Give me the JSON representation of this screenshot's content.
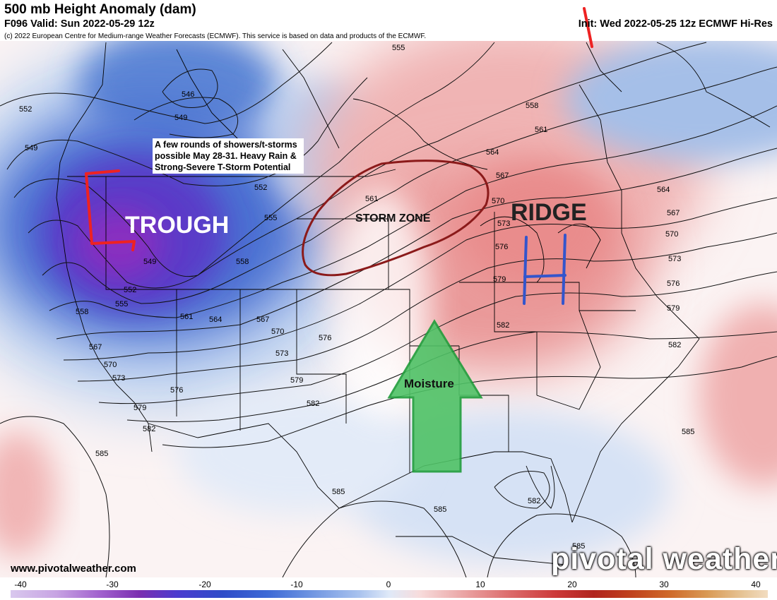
{
  "header": {
    "title": "500 mb Height Anomaly (dam)",
    "subtitle": "F096 Valid: Sun 2022-05-29 12z",
    "init": "Init: Wed 2022-05-25 12z ECMWF Hi-Res",
    "copyright": "(c) 2022 European Centre for Medium-range Weather Forecasts (ECMWF). This service is based on data and products of the ECMWF."
  },
  "annotations": {
    "note_lines": [
      "A few rounds of showers/t-storms",
      "possible May 28-31.  Heavy Rain &",
      "Strong-Severe T-Storm Potential"
    ],
    "trough": "TROUGH",
    "ridge": "RIDGE",
    "storm_zone": "STORM ZONE",
    "moisture": "Moisture"
  },
  "contours": [
    {
      "label": "546"
    },
    {
      "label": "549"
    },
    {
      "label": "552"
    },
    {
      "label": "555"
    },
    {
      "label": "558"
    },
    {
      "label": "561"
    },
    {
      "label": "564"
    },
    {
      "label": "567"
    },
    {
      "label": "570"
    },
    {
      "label": "573"
    },
    {
      "label": "576"
    },
    {
      "label": "579"
    },
    {
      "label": "582"
    },
    {
      "label": "585"
    }
  ],
  "colorbar": {
    "ticks": [
      "-40",
      "-30",
      "-20",
      "-10",
      "0",
      "10",
      "20",
      "30",
      "40"
    ],
    "min": -40,
    "max": 40
  },
  "footer": {
    "site": "www.pivotalweather.com",
    "brand": "pivotal weather"
  },
  "colors": {
    "trough_marker": "#ee2222",
    "high_marker": "#3355cc",
    "storm_zone_outline": "#8b1a1a",
    "moisture_arrow": "#4fc266"
  }
}
